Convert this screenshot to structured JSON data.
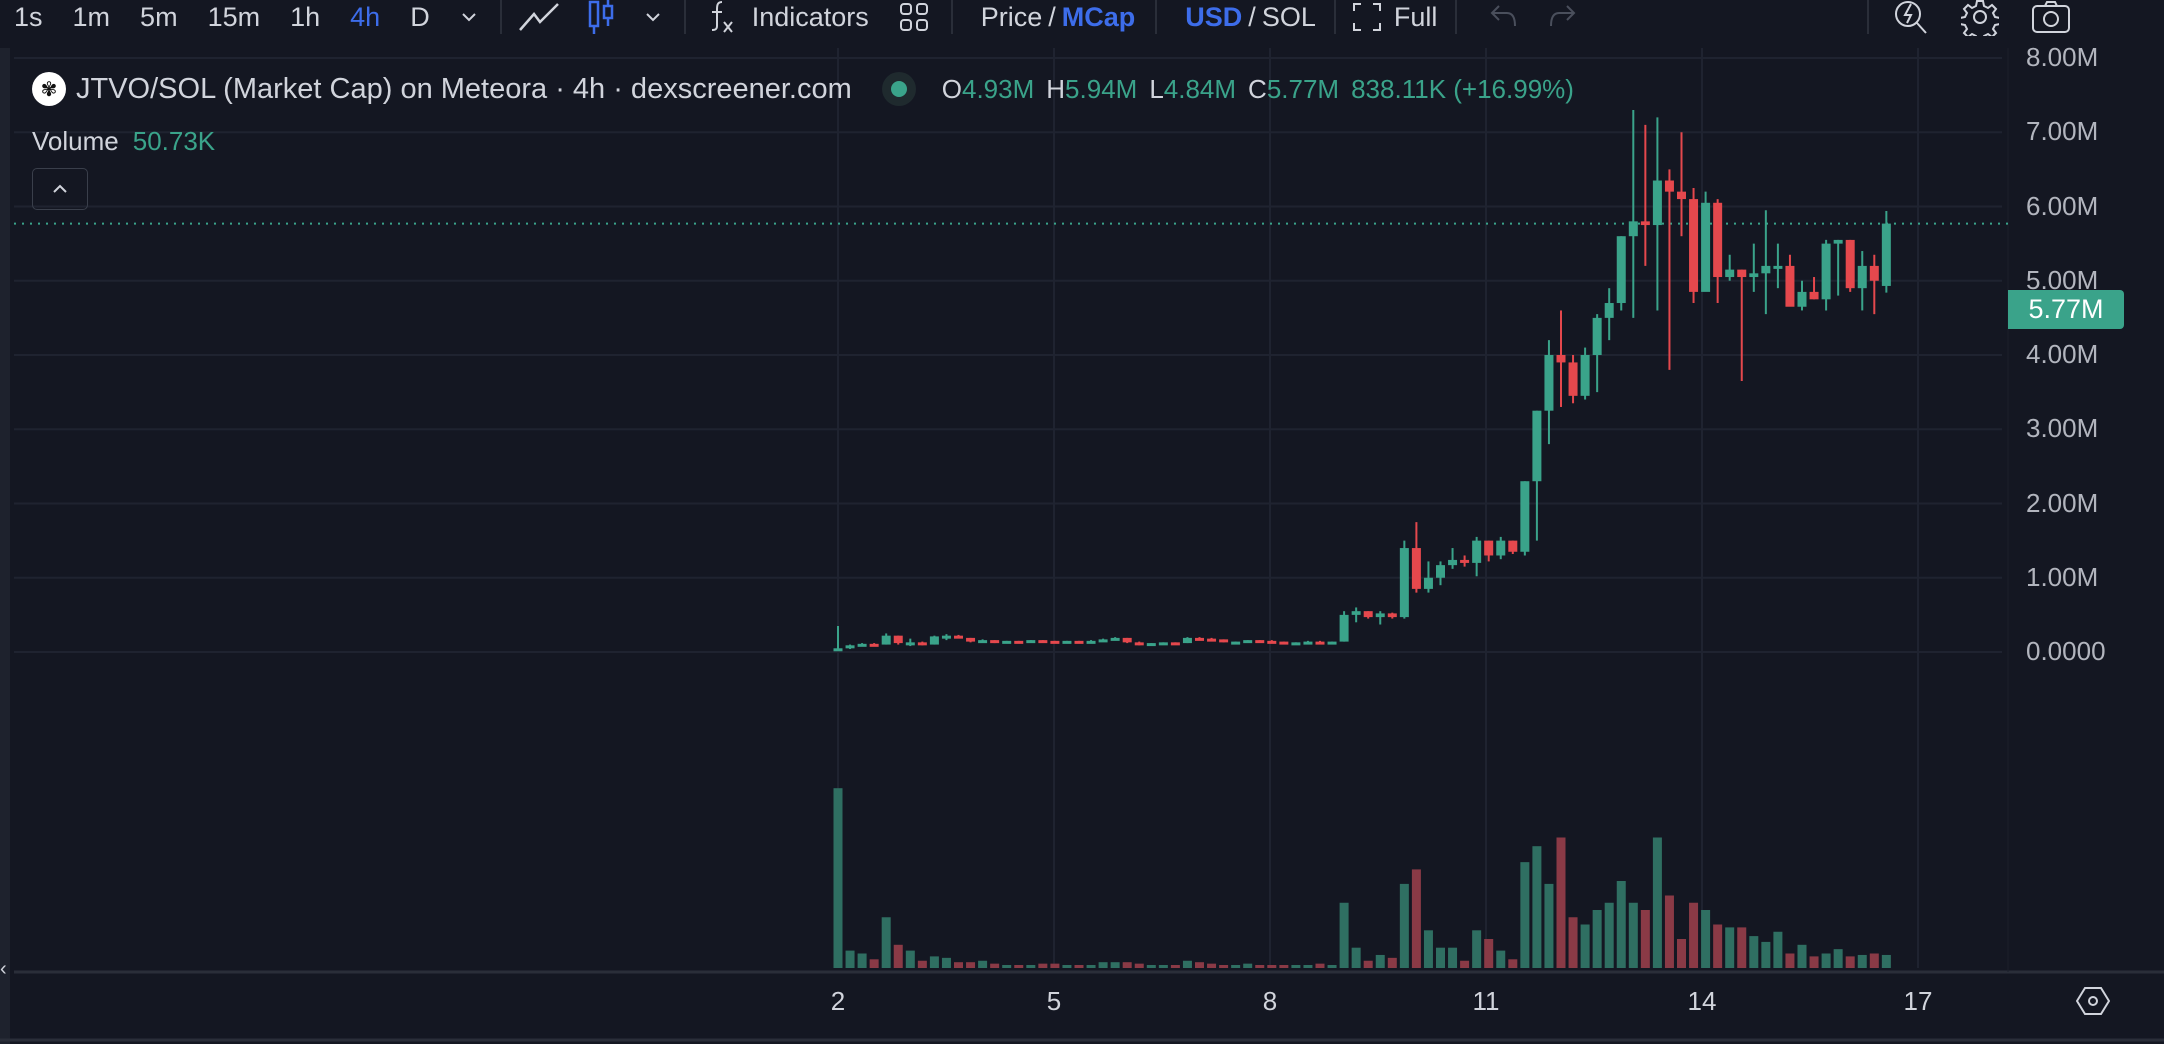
{
  "toolbar": {
    "timeframes": [
      "1s",
      "1m",
      "5m",
      "15m",
      "1h",
      "4h",
      "D"
    ],
    "active_timeframe": "4h",
    "indicators_label": "Indicators",
    "price_label": "Price",
    "mcap_label": "MCap",
    "slash": "/",
    "usd_label": "USD",
    "sol_label": "SOL",
    "full_label": "Full",
    "icons": [
      "chevron-down-icon",
      "line-chart-icon",
      "candlestick-icon",
      "chevron-down-icon",
      "indicators-fx-icon",
      "layout-grid-icon",
      "fullscreen-icon",
      "undo-icon",
      "redo-icon",
      "quick-search-icon",
      "gear-icon",
      "camera-icon"
    ]
  },
  "legend": {
    "title": "JTVO/SOL (Market Cap) on Meteora · 4h · dexscreener.com",
    "o_label": "O",
    "o_value": "4.93M",
    "h_label": "H",
    "h_value": "5.94M",
    "l_label": "L",
    "l_value": "4.84M",
    "c_label": "C",
    "c_value": "5.77M",
    "change": "838.11K (+16.99%)",
    "volume_label": "Volume",
    "volume_value": "50.73K"
  },
  "price_tag": "5.77M",
  "colors": {
    "up": "#3aa38a",
    "down": "#e5484d",
    "vol_up": "#2f6f62",
    "vol_down": "#8a3a46",
    "grid": "#1f2330",
    "accent": "#3d6dea"
  },
  "chart_data": {
    "type": "candlestick",
    "title": "JTVO/SOL (Market Cap) on Meteora · 4h · dexscreener.com",
    "xlabel": "",
    "ylabel": "Market Cap (USD)",
    "y_ticks": [
      "8.00M",
      "7.00M",
      "6.00M",
      "5.00M",
      "4.00M",
      "3.00M",
      "2.00M",
      "1.00M",
      "0.0000"
    ],
    "x_ticks": [
      "2",
      "5",
      "8",
      "11",
      "14",
      "17"
    ],
    "ylim": [
      0,
      8
    ],
    "grid": true,
    "last_close": "5.77M",
    "candles": [
      [
        0.05,
        0.35,
        0.02,
        0.05,
        1.55
      ],
      [
        0.05,
        0.1,
        0.04,
        0.09,
        0.12
      ],
      [
        0.09,
        0.12,
        0.08,
        0.11,
        0.1
      ],
      [
        0.11,
        0.12,
        0.09,
        0.1,
        0.06
      ],
      [
        0.1,
        0.25,
        0.1,
        0.22,
        0.35
      ],
      [
        0.22,
        0.22,
        0.1,
        0.12,
        0.16
      ],
      [
        0.12,
        0.18,
        0.08,
        0.13,
        0.12
      ],
      [
        0.13,
        0.14,
        0.09,
        0.1,
        0.05
      ],
      [
        0.1,
        0.22,
        0.1,
        0.21,
        0.08
      ],
      [
        0.21,
        0.24,
        0.16,
        0.22,
        0.07
      ],
      [
        0.22,
        0.23,
        0.19,
        0.19,
        0.04
      ],
      [
        0.19,
        0.19,
        0.13,
        0.14,
        0.04
      ],
      [
        0.14,
        0.17,
        0.13,
        0.16,
        0.05
      ],
      [
        0.16,
        0.16,
        0.12,
        0.14,
        0.03
      ],
      [
        0.14,
        0.15,
        0.14,
        0.15,
        0.02
      ],
      [
        0.15,
        0.15,
        0.14,
        0.14,
        0.02
      ],
      [
        0.14,
        0.16,
        0.14,
        0.16,
        0.02
      ],
      [
        0.16,
        0.16,
        0.15,
        0.15,
        0.03
      ],
      [
        0.15,
        0.15,
        0.14,
        0.14,
        0.03
      ],
      [
        0.14,
        0.15,
        0.14,
        0.15,
        0.02
      ],
      [
        0.15,
        0.15,
        0.14,
        0.14,
        0.02
      ],
      [
        0.14,
        0.16,
        0.14,
        0.15,
        0.02
      ],
      [
        0.15,
        0.18,
        0.15,
        0.17,
        0.04
      ],
      [
        0.17,
        0.2,
        0.17,
        0.19,
        0.04
      ],
      [
        0.19,
        0.19,
        0.12,
        0.13,
        0.04
      ],
      [
        0.13,
        0.14,
        0.09,
        0.1,
        0.03
      ],
      [
        0.1,
        0.12,
        0.1,
        0.12,
        0.02
      ],
      [
        0.12,
        0.13,
        0.12,
        0.13,
        0.02
      ],
      [
        0.13,
        0.13,
        0.12,
        0.12,
        0.02
      ],
      [
        0.12,
        0.2,
        0.12,
        0.19,
        0.05
      ],
      [
        0.19,
        0.2,
        0.17,
        0.18,
        0.04
      ],
      [
        0.18,
        0.19,
        0.16,
        0.17,
        0.03
      ],
      [
        0.17,
        0.17,
        0.13,
        0.14,
        0.02
      ],
      [
        0.14,
        0.14,
        0.13,
        0.14,
        0.02
      ],
      [
        0.14,
        0.16,
        0.14,
        0.16,
        0.03
      ],
      [
        0.16,
        0.16,
        0.15,
        0.15,
        0.02
      ],
      [
        0.15,
        0.16,
        0.13,
        0.14,
        0.02
      ],
      [
        0.14,
        0.14,
        0.11,
        0.12,
        0.02
      ],
      [
        0.12,
        0.13,
        0.12,
        0.13,
        0.02
      ],
      [
        0.13,
        0.15,
        0.13,
        0.14,
        0.02
      ],
      [
        0.14,
        0.15,
        0.12,
        0.13,
        0.03
      ],
      [
        0.13,
        0.14,
        0.13,
        0.14,
        0.02
      ],
      [
        0.14,
        0.55,
        0.14,
        0.5,
        0.45
      ],
      [
        0.5,
        0.6,
        0.4,
        0.55,
        0.14
      ],
      [
        0.55,
        0.55,
        0.45,
        0.47,
        0.05
      ],
      [
        0.47,
        0.55,
        0.37,
        0.52,
        0.09
      ],
      [
        0.52,
        0.53,
        0.45,
        0.47,
        0.07
      ],
      [
        0.47,
        1.5,
        0.45,
        1.4,
        0.58
      ],
      [
        1.4,
        1.75,
        0.8,
        0.85,
        0.68
      ],
      [
        0.85,
        1.22,
        0.8,
        1.0,
        0.26
      ],
      [
        1.0,
        1.22,
        0.9,
        1.17,
        0.14
      ],
      [
        1.17,
        1.4,
        1.12,
        1.24,
        0.14
      ],
      [
        1.24,
        1.3,
        1.15,
        1.2,
        0.05
      ],
      [
        1.2,
        1.55,
        1.02,
        1.5,
        0.26
      ],
      [
        1.5,
        1.5,
        1.22,
        1.3,
        0.2
      ],
      [
        1.3,
        1.55,
        1.25,
        1.5,
        0.12
      ],
      [
        1.5,
        1.5,
        1.32,
        1.35,
        0.06
      ],
      [
        1.35,
        2.3,
        1.3,
        2.3,
        0.73
      ],
      [
        2.3,
        3.25,
        1.5,
        3.25,
        0.84
      ],
      [
        3.25,
        4.2,
        2.8,
        4.0,
        0.58
      ],
      [
        4.0,
        4.6,
        3.3,
        3.9,
        0.9
      ],
      [
        3.9,
        4.0,
        3.35,
        3.45,
        0.35
      ],
      [
        3.45,
        4.1,
        3.4,
        4.0,
        0.3
      ],
      [
        4.0,
        4.55,
        3.5,
        4.5,
        0.4
      ],
      [
        4.5,
        4.9,
        4.2,
        4.7,
        0.45
      ],
      [
        4.7,
        5.6,
        4.6,
        5.6,
        0.6
      ],
      [
        5.6,
        7.3,
        4.5,
        5.8,
        0.45
      ],
      [
        5.8,
        7.1,
        5.2,
        5.75,
        0.4
      ],
      [
        5.75,
        7.2,
        4.6,
        6.35,
        0.9
      ],
      [
        6.35,
        6.5,
        3.8,
        6.2,
        0.5
      ],
      [
        6.2,
        7.0,
        5.6,
        6.1,
        0.2
      ],
      [
        6.1,
        6.25,
        4.7,
        4.85,
        0.45
      ],
      [
        4.85,
        6.2,
        4.9,
        6.05,
        0.4
      ],
      [
        6.05,
        6.1,
        4.7,
        5.05,
        0.3
      ],
      [
        5.05,
        5.35,
        5.0,
        5.15,
        0.28
      ],
      [
        5.15,
        5.15,
        3.65,
        5.05,
        0.28
      ],
      [
        5.05,
        5.5,
        4.85,
        5.1,
        0.22
      ],
      [
        5.1,
        5.95,
        4.55,
        5.2,
        0.18
      ],
      [
        5.2,
        5.5,
        4.9,
        5.2,
        0.25
      ],
      [
        5.2,
        5.35,
        4.7,
        4.65,
        0.1
      ],
      [
        4.65,
        5.0,
        4.6,
        4.85,
        0.16
      ],
      [
        4.85,
        5.05,
        4.75,
        4.75,
        0.08
      ],
      [
        4.75,
        5.55,
        4.6,
        5.5,
        0.1
      ],
      [
        5.5,
        5.55,
        4.8,
        5.55,
        0.13
      ],
      [
        5.55,
        5.55,
        4.85,
        4.9,
        0.08
      ],
      [
        4.9,
        5.4,
        4.6,
        5.2,
        0.09
      ],
      [
        5.2,
        5.35,
        4.55,
        5.0,
        0.1
      ],
      [
        4.93,
        5.94,
        4.84,
        5.77,
        0.09
      ]
    ]
  }
}
